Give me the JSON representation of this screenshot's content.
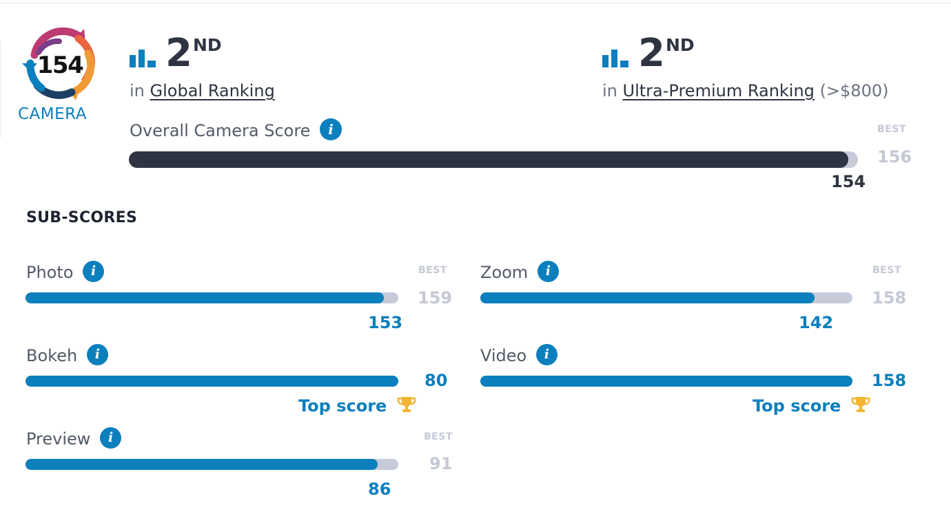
{
  "badge": {
    "score": "154",
    "label": "CAMERA"
  },
  "rankings": [
    {
      "position": "2",
      "suffix": "ND",
      "prefix": "in",
      "link": "Global Ranking",
      "extra": ""
    },
    {
      "position": "2",
      "suffix": "ND",
      "prefix": "in",
      "link": "Ultra-Premium Ranking",
      "extra": "(>$800)"
    }
  ],
  "overall": {
    "title": "Overall Camera Score",
    "best_label": "BEST",
    "best": "156",
    "score": "154",
    "score_num": 154,
    "best_num": 156
  },
  "sub_heading": "SUB-SCORES",
  "sub_scores": [
    {
      "name": "Photo",
      "score": "153",
      "best_label": "BEST",
      "best": "159",
      "fraction": 0.962,
      "top": ""
    },
    {
      "name": "Zoom",
      "score": "142",
      "best_label": "BEST",
      "best": "158",
      "fraction": 0.899,
      "top": ""
    },
    {
      "name": "Bokeh",
      "score": "80",
      "best_label": "",
      "best": "",
      "fraction": 1.0,
      "top": "Top score"
    },
    {
      "name": "Video",
      "score": "158",
      "best_label": "",
      "best": "",
      "fraction": 1.0,
      "top": "Top score"
    },
    {
      "name": "Preview",
      "score": "86",
      "best_label": "BEST",
      "best": "91",
      "fraction": 0.945,
      "top": ""
    }
  ],
  "icons": {
    "info": "i",
    "ranking": "bar-chart-icon",
    "trophy": "trophy-icon"
  },
  "colors": {
    "accent": "#0c7fbd",
    "dark": "#2e3441",
    "track": "#c7cbd9",
    "trophy": "#f2b431"
  }
}
